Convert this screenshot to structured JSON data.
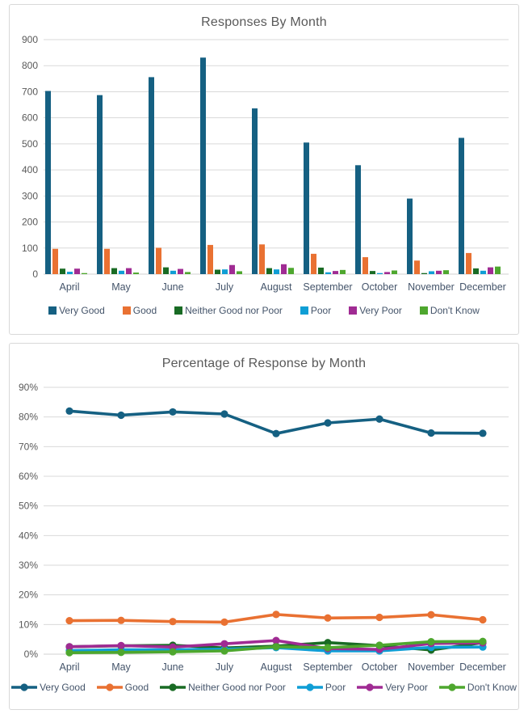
{
  "colors": {
    "title_text": "#595959",
    "axis_text": "#595959",
    "category_text": "#44546A",
    "legend_text": "#44546A",
    "gridline": "#D9D9D9",
    "axis_line": "#D0D0D0",
    "panel_border": "#D9D9D9",
    "series": {
      "very_good": "#156082",
      "good": "#E97132",
      "neither_good_nor_poor": "#196B24",
      "poor": "#0F9ED5",
      "very_poor": "#A02B93",
      "dont_know": "#4EA72E"
    }
  },
  "chart_data": [
    {
      "id": "bar-chart",
      "type": "bar",
      "title": "Responses By Month",
      "xlabel": "",
      "ylabel": "",
      "categories": [
        "April",
        "May",
        "June",
        "July",
        "August",
        "September",
        "October",
        "November",
        "December"
      ],
      "series": [
        {
          "name": "Very Good",
          "color": "#156082",
          "values": [
            703,
            687,
            756,
            831,
            636,
            505,
            418,
            290,
            523
          ]
        },
        {
          "name": "Good",
          "color": "#E97132",
          "values": [
            97,
            97,
            101,
            112,
            114,
            78,
            65,
            52,
            81
          ]
        },
        {
          "name": "Neither Good nor Poor",
          "color": "#196B24",
          "values": [
            21,
            23,
            26,
            17,
            23,
            25,
            12,
            4,
            22
          ]
        },
        {
          "name": "Poor",
          "color": "#0F9ED5",
          "values": [
            9,
            13,
            13,
            18,
            18,
            7,
            4,
            11,
            13
          ]
        },
        {
          "name": "Very Poor",
          "color": "#A02B93",
          "values": [
            21,
            23,
            20,
            35,
            38,
            12,
            8,
            13,
            26
          ]
        },
        {
          "name": "Don't Know",
          "color": "#4EA72E",
          "values": [
            4,
            6,
            8,
            11,
            24,
            16,
            14,
            15,
            29
          ]
        }
      ],
      "ylim": [
        0,
        900
      ],
      "ytick_step": 100,
      "ytick_suffix": "",
      "grid": true,
      "legend_position": "bottom"
    },
    {
      "id": "line-chart",
      "type": "line",
      "title": "Percentage of Response by Month",
      "xlabel": "",
      "ylabel": "",
      "categories": [
        "April",
        "May",
        "June",
        "July",
        "August",
        "September",
        "October",
        "November",
        "December"
      ],
      "series": [
        {
          "name": "Very Good",
          "color": "#156082",
          "values": [
            82.0,
            80.6,
            81.7,
            81.0,
            74.4,
            78.0,
            79.3,
            74.6,
            74.5
          ]
        },
        {
          "name": "Good",
          "color": "#E97132",
          "values": [
            11.3,
            11.4,
            11.0,
            10.8,
            13.4,
            12.2,
            12.4,
            13.3,
            11.6
          ]
        },
        {
          "name": "Neither Good nor Poor",
          "color": "#196B24",
          "values": [
            2.5,
            2.8,
            3.0,
            2.1,
            2.7,
            3.9,
            2.9,
            1.4,
            3.9
          ]
        },
        {
          "name": "Poor",
          "color": "#0F9ED5",
          "values": [
            1.2,
            1.5,
            1.5,
            1.7,
            2.2,
            1.1,
            1.1,
            2.3,
            2.4
          ]
        },
        {
          "name": "Very Poor",
          "color": "#A02B93",
          "values": [
            2.5,
            2.9,
            2.4,
            3.5,
            4.6,
            1.9,
            1.6,
            3.6,
            3.8
          ]
        },
        {
          "name": "Don't Know",
          "color": "#4EA72E",
          "values": [
            0.5,
            0.6,
            0.8,
            1.1,
            2.5,
            2.2,
            3.0,
            4.2,
            4.3
          ]
        }
      ],
      "ylim": [
        0,
        90
      ],
      "ytick_step": 10,
      "ytick_suffix": "%",
      "grid": true,
      "legend_position": "bottom"
    }
  ]
}
